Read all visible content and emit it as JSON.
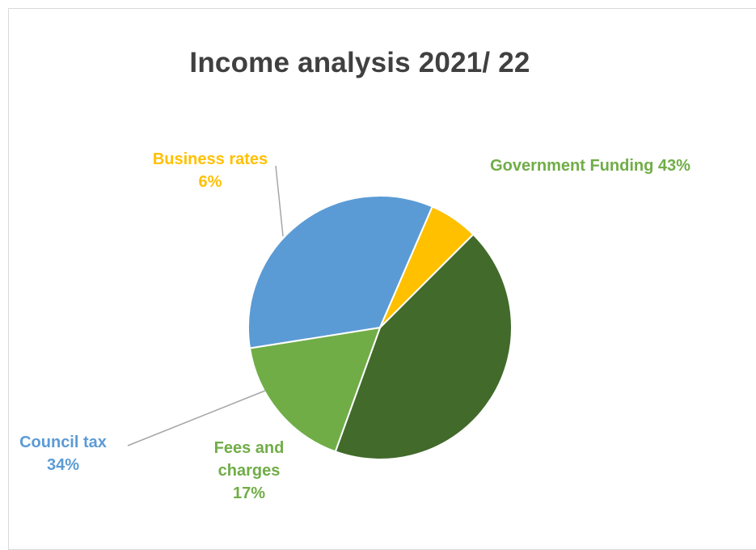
{
  "chart_data": {
    "type": "pie",
    "title": "Income analysis 2021/ 22",
    "slices": [
      {
        "name": "Government Funding",
        "value": 43,
        "label_text": "43%",
        "color": "#426a2b"
      },
      {
        "name": "Fees and charges",
        "value": 17,
        "label_text": "17%",
        "color": "#70ad47"
      },
      {
        "name": "Council tax",
        "value": 34,
        "label_text": "34%",
        "color": "#5b9bd5"
      },
      {
        "name": "Business rates",
        "value": 6,
        "label_text": "6%",
        "color": "#ffc000"
      }
    ],
    "label_colors": {
      "Government Funding": "#70ad47",
      "Fees and charges": "#70ad47",
      "Council tax": "#5b9bd5",
      "Business rates": "#ffc000"
    },
    "labels": {
      "business_rates": {
        "line1": "Business rates",
        "line2": "6%"
      },
      "government_funding": {
        "line1": "Government Funding 43%"
      },
      "council_tax": {
        "line1": "Council tax",
        "line2": "34%"
      },
      "fees_and_charges": {
        "line1": "Fees and",
        "line2": "charges",
        "line3": "17%"
      }
    },
    "start_angle_deg": 45,
    "direction": "clockwise",
    "legend": "none"
  }
}
